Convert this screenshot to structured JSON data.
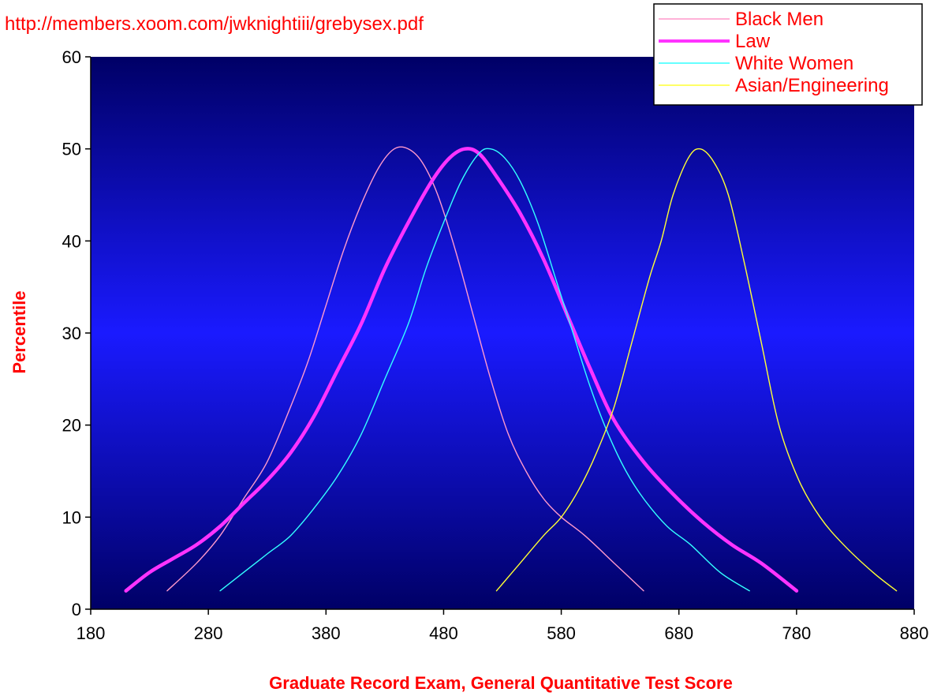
{
  "source_text": "http://members.xoom.com/jwknightiii/grebysex.pdf",
  "chart_data": {
    "type": "line",
    "xlabel": "Graduate Record Exam, General Quantitative Test Score",
    "ylabel": "Percentile",
    "xlim": [
      180,
      880
    ],
    "ylim": [
      0,
      60
    ],
    "x_ticks": [
      "180",
      "280",
      "380",
      "480",
      "580",
      "680",
      "780",
      "880"
    ],
    "y_ticks": [
      "0",
      "10",
      "20",
      "30",
      "40",
      "50",
      "60"
    ],
    "grid": false,
    "legend_position": "top-right",
    "plot_background": "gradient navy-to-blue",
    "series": [
      {
        "name": "Black Men",
        "color": "#ff99cc",
        "width": 1.4,
        "points": [
          [
            245,
            2
          ],
          [
            270,
            5
          ],
          [
            290,
            8
          ],
          [
            310,
            12
          ],
          [
            330,
            16
          ],
          [
            350,
            22
          ],
          [
            365,
            27
          ],
          [
            380,
            33
          ],
          [
            395,
            39
          ],
          [
            410,
            44
          ],
          [
            425,
            48
          ],
          [
            438,
            50
          ],
          [
            450,
            50
          ],
          [
            462,
            48.5
          ],
          [
            475,
            45
          ],
          [
            490,
            39
          ],
          [
            505,
            32
          ],
          [
            520,
            25
          ],
          [
            535,
            19
          ],
          [
            550,
            15
          ],
          [
            565,
            12
          ],
          [
            580,
            10
          ],
          [
            600,
            8
          ],
          [
            625,
            5
          ],
          [
            650,
            2
          ]
        ]
      },
      {
        "name": "Law",
        "color": "#ff33ff",
        "width": 4.5,
        "points": [
          [
            210,
            2
          ],
          [
            230,
            4
          ],
          [
            250,
            5.5
          ],
          [
            270,
            7
          ],
          [
            290,
            9
          ],
          [
            310,
            11.5
          ],
          [
            330,
            14
          ],
          [
            350,
            17
          ],
          [
            370,
            21
          ],
          [
            390,
            26
          ],
          [
            410,
            31
          ],
          [
            430,
            37
          ],
          [
            450,
            42
          ],
          [
            470,
            46.5
          ],
          [
            485,
            49
          ],
          [
            498,
            50
          ],
          [
            510,
            49.5
          ],
          [
            525,
            47
          ],
          [
            545,
            43
          ],
          [
            565,
            38
          ],
          [
            585,
            32
          ],
          [
            605,
            26
          ],
          [
            625,
            20.5
          ],
          [
            650,
            16
          ],
          [
            675,
            12.5
          ],
          [
            700,
            9.5
          ],
          [
            725,
            7
          ],
          [
            750,
            5
          ],
          [
            780,
            2
          ]
        ]
      },
      {
        "name": "White Women",
        "color": "#33ffff",
        "width": 1.4,
        "points": [
          [
            290,
            2
          ],
          [
            310,
            4
          ],
          [
            330,
            6
          ],
          [
            350,
            8
          ],
          [
            370,
            11
          ],
          [
            390,
            14.5
          ],
          [
            410,
            19
          ],
          [
            430,
            25
          ],
          [
            450,
            31
          ],
          [
            465,
            37
          ],
          [
            480,
            42
          ],
          [
            495,
            46.5
          ],
          [
            510,
            49.5
          ],
          [
            520,
            50
          ],
          [
            532,
            49
          ],
          [
            545,
            46.5
          ],
          [
            560,
            42
          ],
          [
            575,
            36
          ],
          [
            590,
            30
          ],
          [
            605,
            24
          ],
          [
            620,
            19
          ],
          [
            635,
            15
          ],
          [
            650,
            12
          ],
          [
            670,
            9
          ],
          [
            690,
            7
          ],
          [
            715,
            4
          ],
          [
            740,
            2
          ]
        ]
      },
      {
        "name": "Asian/Engineering",
        "color": "#ffff33",
        "width": 1.4,
        "points": [
          [
            525,
            2
          ],
          [
            545,
            5
          ],
          [
            565,
            8
          ],
          [
            580,
            10
          ],
          [
            595,
            13
          ],
          [
            610,
            17
          ],
          [
            625,
            22
          ],
          [
            640,
            29
          ],
          [
            655,
            36
          ],
          [
            665,
            40
          ],
          [
            675,
            45
          ],
          [
            688,
            49
          ],
          [
            698,
            50
          ],
          [
            710,
            48.5
          ],
          [
            722,
            45
          ],
          [
            735,
            38
          ],
          [
            750,
            29
          ],
          [
            765,
            20
          ],
          [
            782,
            14
          ],
          [
            800,
            10
          ],
          [
            820,
            7
          ],
          [
            845,
            4
          ],
          [
            865,
            2
          ]
        ]
      }
    ]
  }
}
